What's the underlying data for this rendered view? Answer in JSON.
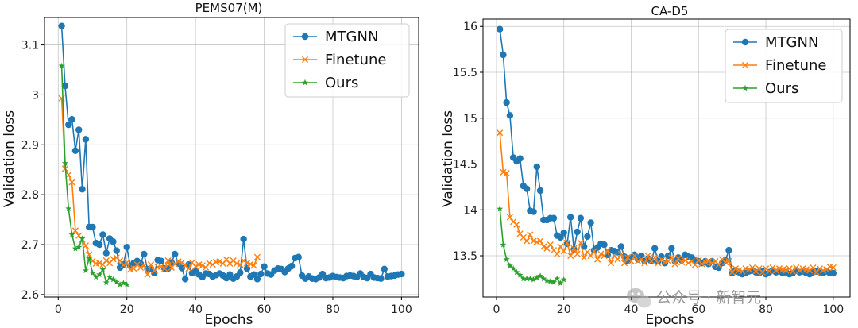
{
  "watermark": "公众号 · 新智元",
  "chart_data": [
    {
      "type": "line",
      "title": "PEMS07(M)",
      "xlabel": "Epochs",
      "ylabel": "Validation loss",
      "xlim": [
        -4,
        105
      ],
      "ylim": [
        2.595,
        3.155
      ],
      "xticks": [
        0,
        20,
        40,
        60,
        80,
        100
      ],
      "yticks": [
        2.6,
        2.7,
        2.8,
        2.9,
        3.0,
        3.1
      ],
      "grid": true,
      "legend_position": "top-right",
      "series": [
        {
          "name": "MTGNN",
          "color": "#1f77b4",
          "marker": "circle",
          "x": [
            1,
            2,
            3,
            4,
            5,
            6,
            7,
            8,
            9,
            10,
            11,
            12,
            13,
            14,
            15,
            16,
            17,
            18,
            19,
            20,
            21,
            22,
            23,
            24,
            25,
            26,
            27,
            28,
            29,
            30,
            31,
            32,
            33,
            34,
            35,
            36,
            37,
            38,
            39,
            40,
            41,
            42,
            43,
            44,
            45,
            46,
            47,
            48,
            49,
            50,
            51,
            52,
            53,
            54,
            55,
            56,
            57,
            58,
            59,
            60,
            61,
            62,
            63,
            64,
            65,
            66,
            67,
            68,
            69,
            70,
            71,
            72,
            73,
            74,
            75,
            76,
            77,
            78,
            79,
            80,
            81,
            82,
            83,
            84,
            85,
            86,
            87,
            88,
            89,
            90,
            91,
            92,
            93,
            94,
            95,
            96,
            97,
            98,
            99,
            100
          ],
          "y": [
            3.138,
            3.018,
            2.94,
            2.951,
            2.888,
            2.93,
            2.811,
            2.911,
            2.735,
            2.735,
            2.703,
            2.7,
            2.72,
            2.683,
            2.712,
            2.706,
            2.688,
            2.654,
            2.66,
            2.695,
            2.657,
            2.663,
            2.667,
            2.662,
            2.681,
            2.651,
            2.652,
            2.643,
            2.669,
            2.667,
            2.652,
            2.652,
            2.664,
            2.681,
            2.662,
            2.653,
            2.631,
            2.66,
            2.643,
            2.648,
            2.64,
            2.635,
            2.642,
            2.641,
            2.636,
            2.639,
            2.642,
            2.638,
            2.633,
            2.64,
            2.632,
            2.636,
            2.644,
            2.711,
            2.652,
            2.636,
            2.64,
            2.631,
            2.641,
            2.656,
            2.642,
            2.64,
            2.648,
            2.652,
            2.651,
            2.645,
            2.652,
            2.657,
            2.673,
            2.675,
            2.638,
            2.632,
            2.636,
            2.632,
            2.631,
            2.634,
            2.641,
            2.633,
            2.634,
            2.637,
            2.635,
            2.634,
            2.633,
            2.637,
            2.638,
            2.637,
            2.635,
            2.642,
            2.635,
            2.633,
            2.641,
            2.634,
            2.633,
            2.632,
            2.651,
            2.636,
            2.637,
            2.638,
            2.64,
            2.641
          ]
        },
        {
          "name": "Finetune",
          "color": "#ff7f0e",
          "marker": "x",
          "x": [
            1,
            2,
            3,
            4,
            5,
            6,
            7,
            8,
            9,
            10,
            11,
            12,
            13,
            14,
            15,
            16,
            17,
            18,
            19,
            20,
            21,
            22,
            23,
            24,
            25,
            26,
            27,
            28,
            29,
            30,
            31,
            32,
            33,
            34,
            35,
            36,
            37,
            38,
            39,
            40,
            41,
            42,
            43,
            44,
            45,
            46,
            47,
            48,
            49,
            50,
            51,
            52,
            53,
            54,
            55,
            56,
            57,
            58
          ],
          "y": [
            2.993,
            2.852,
            2.84,
            2.825,
            2.728,
            2.718,
            2.71,
            2.698,
            2.68,
            2.667,
            2.662,
            2.663,
            2.66,
            2.668,
            2.663,
            2.671,
            2.674,
            2.668,
            2.659,
            2.664,
            2.65,
            2.652,
            2.66,
            2.654,
            2.658,
            2.64,
            2.66,
            2.648,
            2.655,
            2.656,
            2.652,
            2.668,
            2.654,
            2.661,
            2.666,
            2.664,
            2.658,
            2.652,
            2.664,
            2.656,
            2.66,
            2.658,
            2.654,
            2.663,
            2.66,
            2.665,
            2.666,
            2.662,
            2.67,
            2.662,
            2.668,
            2.662,
            2.66,
            2.668,
            2.663,
            2.661,
            2.658,
            2.675
          ]
        },
        {
          "name": "Ours",
          "color": "#2ca02c",
          "marker": "star",
          "x": [
            1,
            2,
            3,
            4,
            5,
            6,
            7,
            8,
            9,
            10,
            11,
            12,
            13,
            14,
            15,
            16,
            17,
            18,
            19,
            20
          ],
          "y": [
            3.058,
            2.863,
            2.772,
            2.72,
            2.692,
            2.695,
            2.712,
            2.648,
            2.672,
            2.643,
            2.635,
            2.64,
            2.65,
            2.624,
            2.635,
            2.63,
            2.625,
            2.62,
            2.623,
            2.62
          ]
        }
      ]
    },
    {
      "type": "line",
      "title": "CA-D5",
      "xlabel": "Epochs",
      "ylabel": "Validation loss",
      "xlim": [
        -4,
        105
      ],
      "ylim": [
        13.05,
        16.08
      ],
      "xticks": [
        0,
        20,
        40,
        60,
        80,
        100
      ],
      "yticks": [
        13.5,
        14.0,
        14.5,
        15.0,
        15.5,
        16.0
      ],
      "grid": true,
      "legend_position": "top-right",
      "series": [
        {
          "name": "MTGNN",
          "color": "#1f77b4",
          "marker": "circle",
          "x": [
            1,
            2,
            3,
            4,
            5,
            6,
            7,
            8,
            9,
            10,
            11,
            12,
            13,
            14,
            15,
            16,
            17,
            18,
            19,
            20,
            21,
            22,
            23,
            24,
            25,
            26,
            27,
            28,
            29,
            30,
            31,
            32,
            33,
            34,
            35,
            36,
            37,
            38,
            39,
            40,
            41,
            42,
            43,
            44,
            45,
            46,
            47,
            48,
            49,
            50,
            51,
            52,
            53,
            54,
            55,
            56,
            57,
            58,
            59,
            60,
            61,
            62,
            63,
            64,
            65,
            66,
            67,
            68,
            69,
            70,
            71,
            72,
            73,
            74,
            75,
            76,
            77,
            78,
            79,
            80,
            81,
            82,
            83,
            84,
            85,
            86,
            87,
            88,
            89,
            90,
            91,
            92,
            93,
            94,
            95,
            96,
            97,
            98,
            99,
            100
          ],
          "y": [
            15.97,
            15.69,
            15.17,
            15.03,
            14.57,
            14.53,
            14.56,
            14.26,
            14.23,
            13.99,
            13.98,
            14.47,
            14.21,
            13.89,
            13.89,
            13.91,
            13.91,
            13.72,
            13.7,
            13.75,
            13.63,
            13.92,
            13.57,
            13.76,
            13.91,
            13.6,
            13.71,
            13.86,
            13.56,
            13.59,
            13.63,
            13.62,
            13.51,
            13.56,
            13.55,
            13.54,
            13.6,
            13.49,
            13.44,
            13.48,
            13.51,
            13.46,
            13.5,
            13.44,
            13.47,
            13.44,
            13.58,
            13.44,
            13.49,
            13.42,
            13.5,
            13.58,
            13.44,
            13.48,
            13.45,
            13.51,
            13.49,
            13.48,
            13.45,
            13.44,
            13.42,
            13.44,
            13.41,
            13.44,
            13.38,
            13.37,
            13.42,
            13.45,
            13.56,
            13.31,
            13.34,
            13.32,
            13.3,
            13.31,
            13.33,
            13.34,
            13.32,
            13.31,
            13.33,
            13.3,
            13.32,
            13.34,
            13.32,
            13.33,
            13.31,
            13.32,
            13.3,
            13.31,
            13.34,
            13.32,
            13.33,
            13.31,
            13.3,
            13.32,
            13.33,
            13.32,
            13.31,
            13.33,
            13.31,
            13.31
          ]
        },
        {
          "name": "Finetune",
          "color": "#ff7f0e",
          "marker": "x",
          "x": [
            1,
            2,
            3,
            4,
            5,
            6,
            7,
            8,
            9,
            10,
            11,
            12,
            13,
            14,
            15,
            16,
            17,
            18,
            19,
            20,
            21,
            22,
            23,
            24,
            25,
            26,
            27,
            28,
            29,
            30,
            31,
            32,
            33,
            34,
            35,
            36,
            37,
            38,
            39,
            40,
            41,
            42,
            43,
            44,
            45,
            46,
            47,
            48,
            49,
            50,
            51,
            52,
            53,
            54,
            55,
            56,
            57,
            58,
            59,
            60,
            61,
            62,
            63,
            64,
            65,
            66,
            67,
            68,
            69,
            70,
            71,
            72,
            73,
            74,
            75,
            76,
            77,
            78,
            79,
            80,
            81,
            82,
            83,
            84,
            85,
            86,
            87,
            88,
            89,
            90,
            91,
            92,
            93,
            94,
            95,
            96,
            97,
            98,
            99,
            100
          ],
          "y": [
            14.84,
            14.41,
            14.4,
            13.92,
            13.87,
            13.84,
            13.74,
            13.7,
            13.66,
            13.73,
            13.66,
            13.65,
            13.66,
            13.6,
            13.58,
            13.62,
            13.56,
            13.52,
            13.6,
            13.55,
            13.64,
            13.5,
            13.58,
            13.52,
            13.64,
            13.48,
            13.54,
            13.5,
            13.55,
            13.46,
            13.52,
            13.5,
            13.56,
            13.42,
            13.5,
            13.46,
            13.52,
            13.42,
            13.48,
            13.44,
            13.5,
            13.44,
            13.46,
            13.42,
            13.5,
            13.44,
            13.48,
            13.42,
            13.46,
            13.43,
            13.44,
            13.48,
            13.41,
            13.47,
            13.43,
            13.45,
            13.42,
            13.44,
            13.4,
            13.45,
            13.41,
            13.43,
            13.44,
            13.42,
            13.44,
            13.4,
            13.46,
            13.43,
            13.44,
            13.32,
            13.36,
            13.34,
            13.33,
            13.36,
            13.35,
            13.37,
            13.33,
            13.36,
            13.32,
            13.36,
            13.33,
            13.37,
            13.34,
            13.36,
            13.35,
            13.34,
            13.36,
            13.33,
            13.37,
            13.34,
            13.36,
            13.35,
            13.34,
            13.37,
            13.32,
            13.36,
            13.34,
            13.35,
            13.38,
            13.37
          ]
        },
        {
          "name": "Ours",
          "color": "#2ca02c",
          "marker": "star",
          "x": [
            1,
            2,
            3,
            4,
            5,
            6,
            7,
            8,
            9,
            10,
            11,
            12,
            13,
            14,
            15,
            16,
            17,
            18,
            19,
            20
          ],
          "y": [
            14.01,
            13.62,
            13.46,
            13.39,
            13.36,
            13.32,
            13.29,
            13.25,
            13.25,
            13.25,
            13.24,
            13.26,
            13.28,
            13.25,
            13.23,
            13.22,
            13.21,
            13.25,
            13.2,
            13.24
          ]
        }
      ]
    }
  ]
}
